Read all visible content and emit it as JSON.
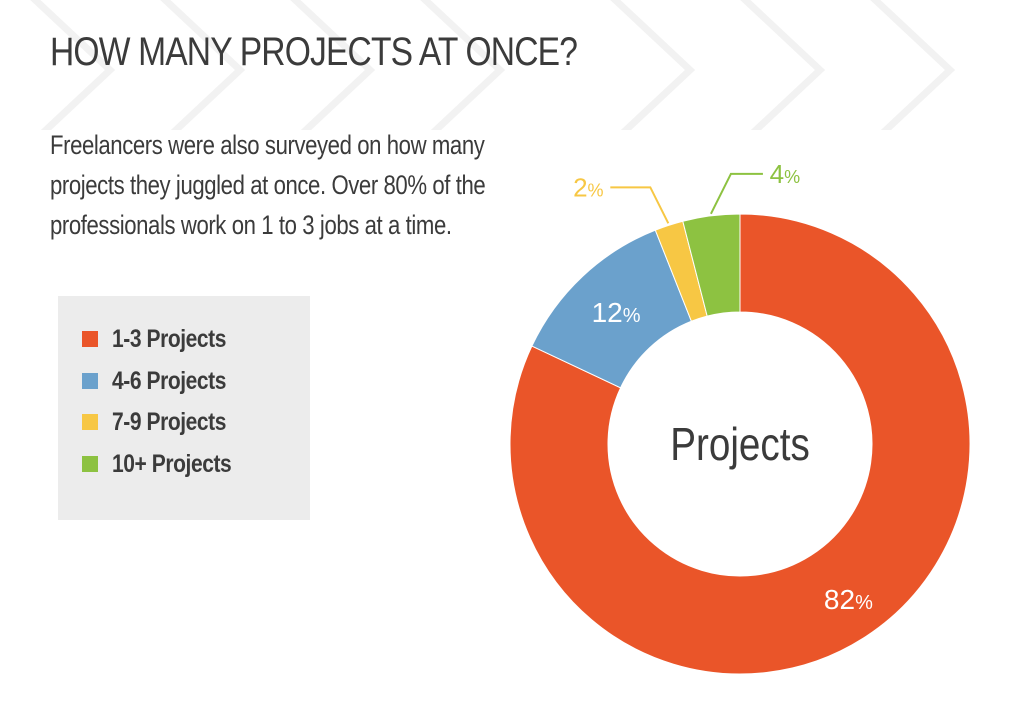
{
  "page": {
    "title": "HOW MANY PROJECTS AT ONCE?",
    "intro": "Freelancers were also surveyed on how many projects they juggled at once. Over 80% of the professionals work on 1 to 3 jobs at a time."
  },
  "legend": {
    "items": [
      {
        "label": "1-3 Projects",
        "color": "#ea5529"
      },
      {
        "label": "4-6 Projects",
        "color": "#6ba1cc"
      },
      {
        "label": "7-9 Projects",
        "color": "#f7c744"
      },
      {
        "label": "10+ Projects",
        "color": "#8dc241"
      }
    ]
  },
  "chart_data": {
    "type": "pie",
    "center_label": "Projects",
    "categories": [
      "1-3 Projects",
      "4-6 Projects",
      "7-9 Projects",
      "10+ Projects"
    ],
    "values": [
      82,
      12,
      2,
      4
    ],
    "value_labels": [
      "82%",
      "12%",
      "2%",
      "4%"
    ],
    "colors": [
      "#ea5529",
      "#6ba1cc",
      "#f7c744",
      "#8dc241"
    ]
  }
}
